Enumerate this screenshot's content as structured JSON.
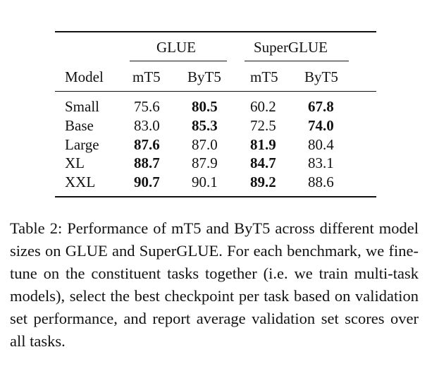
{
  "table": {
    "group_headers": [
      "GLUE",
      "SuperGLUE"
    ],
    "column_headers": [
      "Model",
      "mT5",
      "ByT5",
      "mT5",
      "ByT5"
    ],
    "rows": [
      {
        "model": "Small",
        "glue_mt5": "75.6",
        "glue_byt5": "80.5",
        "sg_mt5": "60.2",
        "sg_byt5": "67.8",
        "bold": [
          "glue_byt5",
          "sg_byt5"
        ]
      },
      {
        "model": "Base",
        "glue_mt5": "83.0",
        "glue_byt5": "85.3",
        "sg_mt5": "72.5",
        "sg_byt5": "74.0",
        "bold": [
          "glue_byt5",
          "sg_byt5"
        ]
      },
      {
        "model": "Large",
        "glue_mt5": "87.6",
        "glue_byt5": "87.0",
        "sg_mt5": "81.9",
        "sg_byt5": "80.4",
        "bold": [
          "glue_mt5",
          "sg_mt5"
        ]
      },
      {
        "model": "XL",
        "glue_mt5": "88.7",
        "glue_byt5": "87.9",
        "sg_mt5": "84.7",
        "sg_byt5": "83.1",
        "bold": [
          "glue_mt5",
          "sg_mt5"
        ]
      },
      {
        "model": "XXL",
        "glue_mt5": "90.7",
        "glue_byt5": "90.1",
        "sg_mt5": "89.2",
        "sg_byt5": "88.6",
        "bold": [
          "glue_mt5",
          "sg_mt5"
        ]
      }
    ]
  },
  "caption": "Table 2: Performance of mT5 and ByT5 across different model sizes on GLUE and SuperGLUE. For each benchmark, we fine-tune on the constituent tasks together (i.e. we train multi-task models), select the best checkpoint per task based on validation set performance, and report average validation set scores over all tasks."
}
